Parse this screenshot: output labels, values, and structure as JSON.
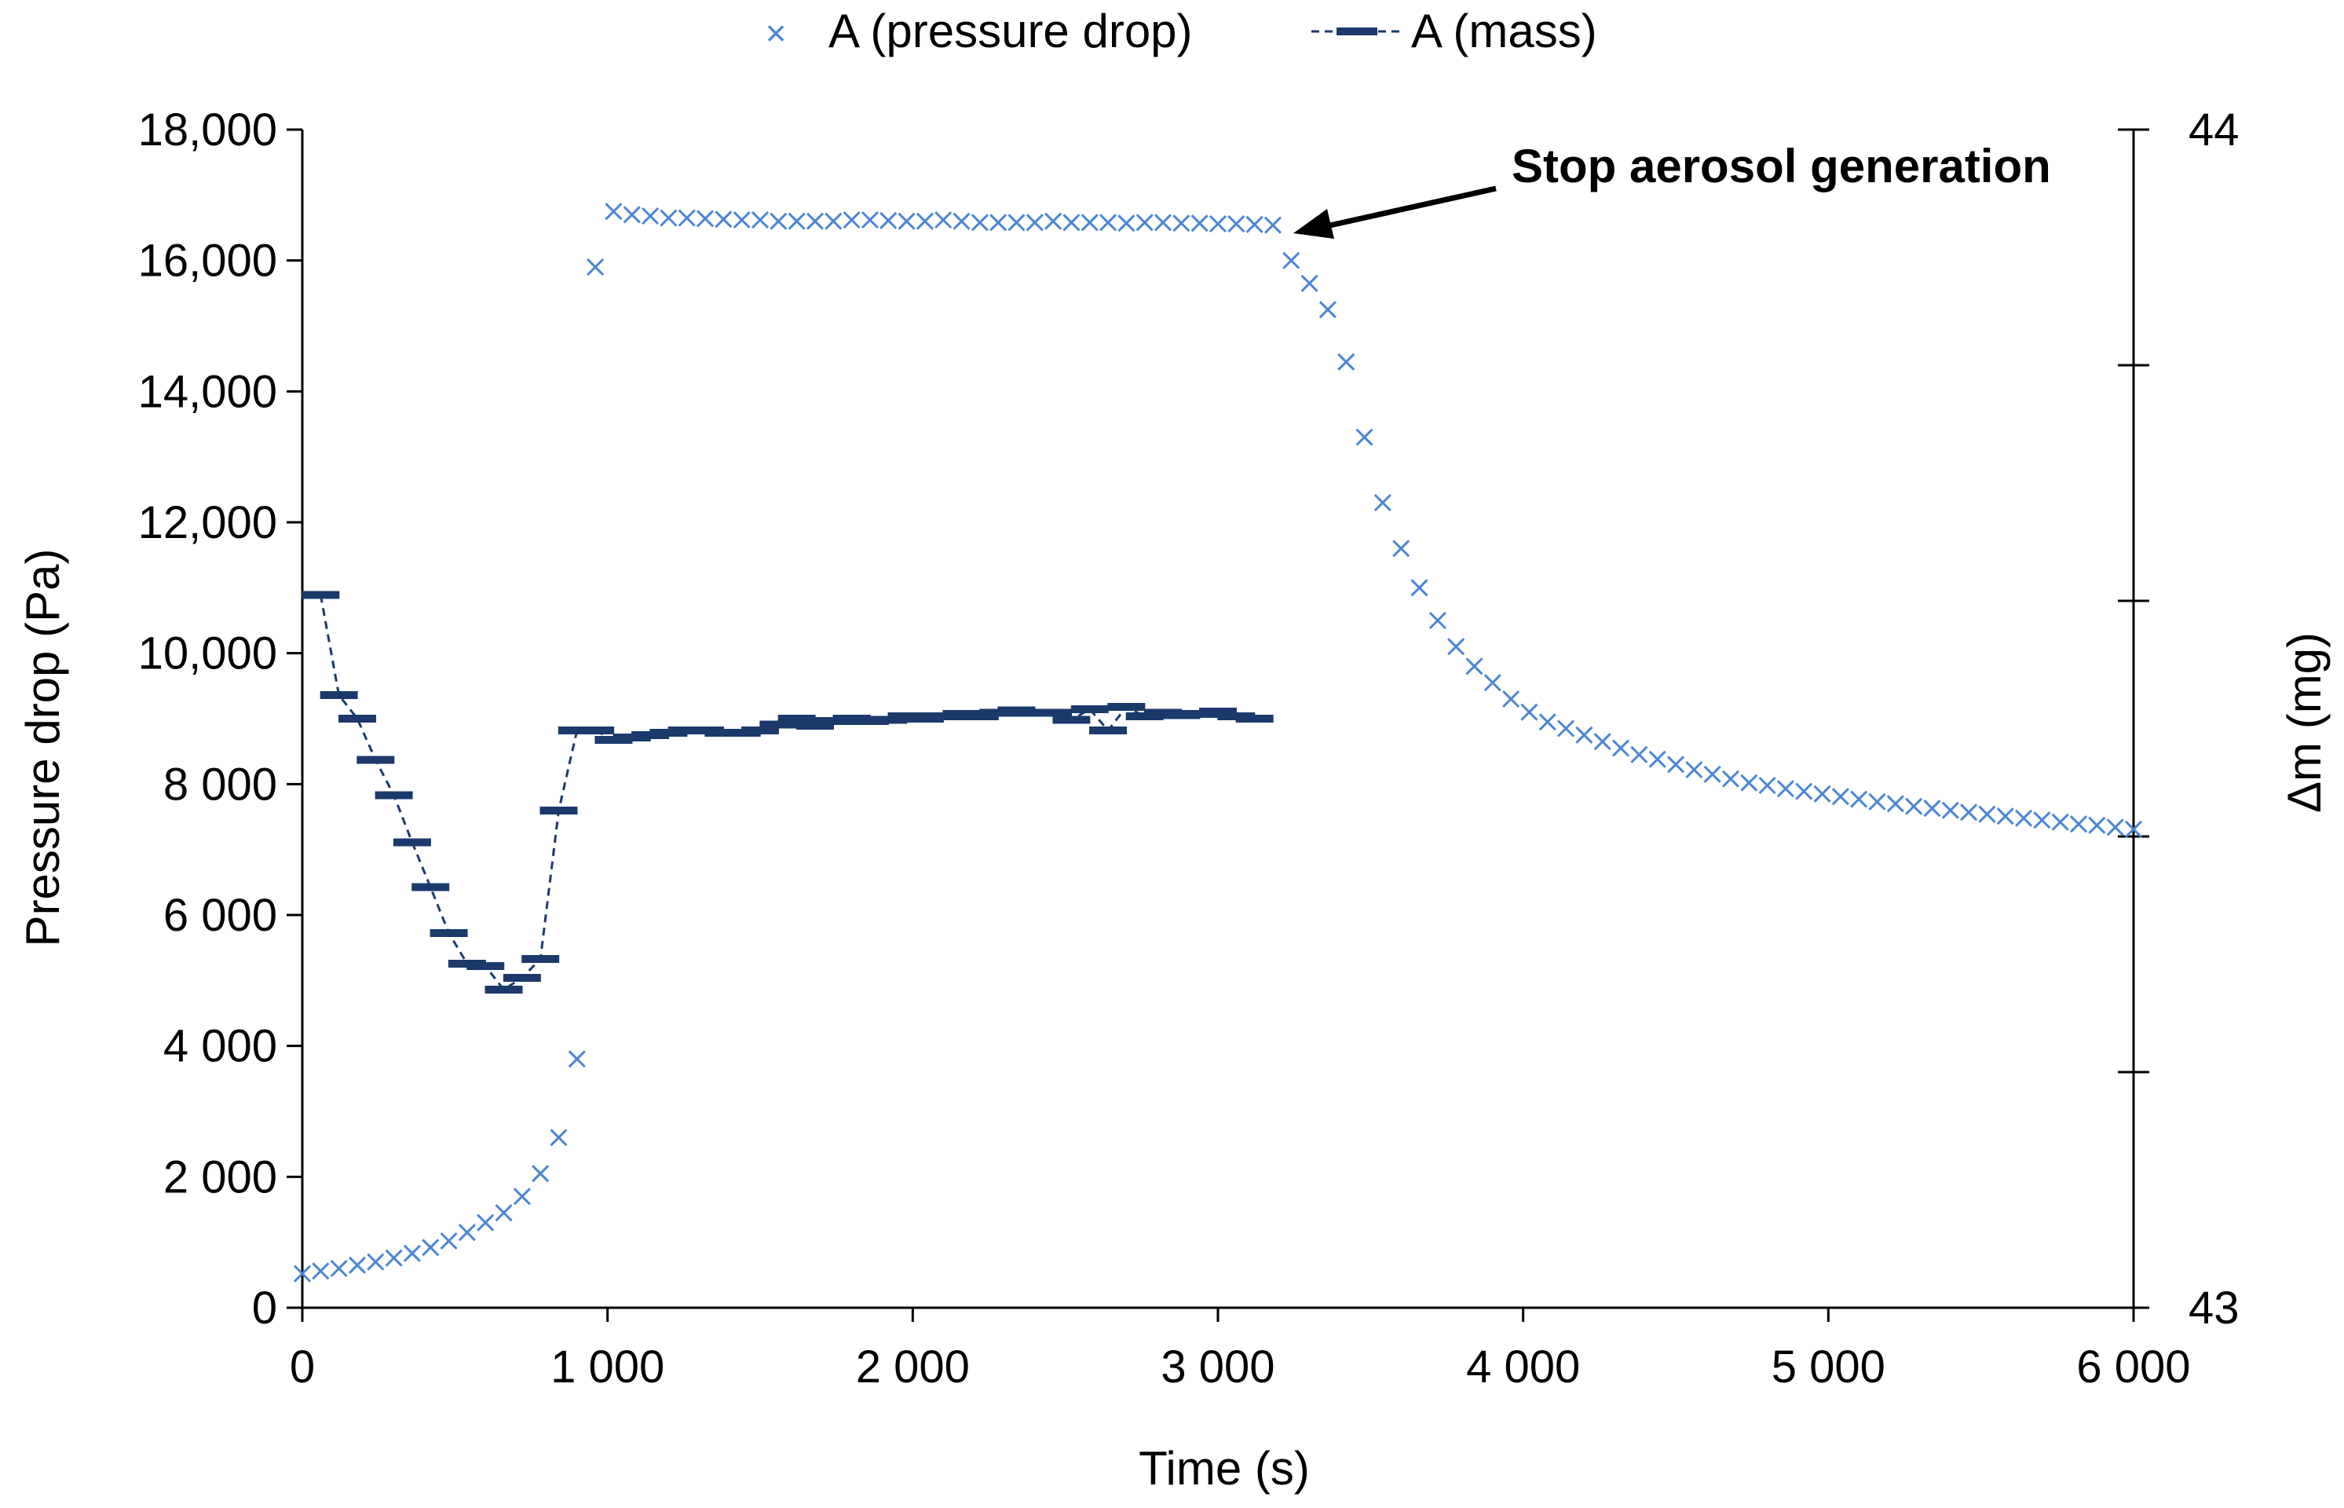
{
  "chart_data": {
    "type": "scatter",
    "xlabel": "Time (s)",
    "ylabel_left": "Pressure drop (Pa)",
    "ylabel_right": "Δm (mg)",
    "xlim": [
      0,
      6000
    ],
    "ylim_left": [
      0,
      18000
    ],
    "ylim_right": [
      43,
      44
    ],
    "x_ticks": [
      {
        "value": 0,
        "label": "0"
      },
      {
        "value": 1000,
        "label": "1 000"
      },
      {
        "value": 2000,
        "label": "2 000"
      },
      {
        "value": 3000,
        "label": "3 000"
      },
      {
        "value": 4000,
        "label": "4 000"
      },
      {
        "value": 5000,
        "label": "5 000"
      },
      {
        "value": 6000,
        "label": "6 000"
      }
    ],
    "y_left_ticks": [
      {
        "value": 0,
        "label": "0"
      },
      {
        "value": 2000,
        "label": "2 000"
      },
      {
        "value": 4000,
        "label": "4 000"
      },
      {
        "value": 6000,
        "label": "6 000"
      },
      {
        "value": 8000,
        "label": "8 000"
      },
      {
        "value": 10000,
        "label": "10,000"
      },
      {
        "value": 12000,
        "label": "12,000"
      },
      {
        "value": 14000,
        "label": "14,000"
      },
      {
        "value": 16000,
        "label": "16,000"
      },
      {
        "value": 18000,
        "label": "18,000"
      }
    ],
    "y_right_ticks": [
      {
        "value": 43,
        "label": "43"
      },
      {
        "value": 43.2,
        "label": ""
      },
      {
        "value": 43.4,
        "label": ""
      },
      {
        "value": 43.6,
        "label": ""
      },
      {
        "value": 43.8,
        "label": ""
      },
      {
        "value": 44,
        "label": "44"
      }
    ],
    "grid": false,
    "legend_position": "top-center",
    "series": [
      {
        "name": "A (pressure drop)",
        "axis": "left",
        "marker": "x",
        "color": "#4a86d4",
        "x": [
          0,
          60,
          120,
          180,
          240,
          300,
          360,
          420,
          480,
          540,
          600,
          660,
          720,
          780,
          840,
          900,
          960,
          1020,
          1080,
          1140,
          1200,
          1260,
          1320,
          1380,
          1440,
          1500,
          1560,
          1620,
          1680,
          1740,
          1800,
          1860,
          1920,
          1980,
          2040,
          2100,
          2160,
          2220,
          2280,
          2340,
          2400,
          2460,
          2520,
          2580,
          2640,
          2700,
          2760,
          2820,
          2880,
          2940,
          3000,
          3060,
          3120,
          3180,
          3240,
          3300,
          3360,
          3420,
          3480,
          3540,
          3600,
          3660,
          3720,
          3780,
          3840,
          3900,
          3960,
          4020,
          4080,
          4140,
          4200,
          4260,
          4320,
          4380,
          4440,
          4500,
          4560,
          4620,
          4680,
          4740,
          4800,
          4860,
          4920,
          4980,
          5040,
          5100,
          5160,
          5220,
          5280,
          5340,
          5400,
          5460,
          5520,
          5580,
          5640,
          5700,
          5760,
          5820,
          5880,
          5940,
          6000
        ],
        "y": [
          520,
          560,
          600,
          650,
          700,
          760,
          830,
          920,
          1020,
          1150,
          1300,
          1450,
          1700,
          2050,
          2600,
          3800,
          15900,
          16750,
          16700,
          16680,
          16650,
          16650,
          16640,
          16630,
          16620,
          16620,
          16600,
          16600,
          16600,
          16600,
          16620,
          16620,
          16610,
          16600,
          16600,
          16620,
          16600,
          16580,
          16580,
          16580,
          16580,
          16600,
          16580,
          16580,
          16580,
          16570,
          16580,
          16580,
          16570,
          16570,
          16560,
          16560,
          16550,
          16540,
          16000,
          15650,
          15250,
          14450,
          13300,
          12300,
          11600,
          11000,
          10500,
          10100,
          9800,
          9550,
          9300,
          9100,
          8950,
          8850,
          8750,
          8650,
          8550,
          8450,
          8380,
          8300,
          8220,
          8150,
          8080,
          8020,
          7980,
          7930,
          7890,
          7850,
          7810,
          7770,
          7730,
          7700,
          7660,
          7630,
          7600,
          7570,
          7540,
          7510,
          7480,
          7450,
          7420,
          7390,
          7370,
          7340,
          7310
        ]
      },
      {
        "name": "A (mass)",
        "axis": "right",
        "marker": "dash",
        "line": "dashed",
        "color": "#1b3a6b",
        "x": [
          60,
          120,
          180,
          240,
          300,
          360,
          420,
          480,
          540,
          600,
          660,
          720,
          780,
          840,
          900,
          960,
          1020,
          1080,
          1140,
          1200,
          1260,
          1320,
          1380,
          1440,
          1500,
          1560,
          1620,
          1680,
          1740,
          1800,
          1860,
          1920,
          1980,
          2040,
          2100,
          2160,
          2220,
          2280,
          2340,
          2400,
          2460,
          2520,
          2580,
          2640,
          2700,
          2760,
          2820,
          2880,
          2940,
          3000,
          3060,
          3120
        ],
        "y": [
          43.605,
          43.52,
          43.5,
          43.465,
          43.435,
          43.395,
          43.357,
          43.318,
          43.292,
          43.29,
          43.27,
          43.28,
          43.296,
          43.422,
          43.49,
          43.49,
          43.482,
          43.484,
          43.486,
          43.488,
          43.49,
          43.49,
          43.488,
          43.488,
          43.49,
          43.495,
          43.5,
          43.494,
          43.498,
          43.5,
          43.498,
          43.499,
          43.502,
          43.5,
          43.502,
          43.504,
          43.502,
          43.505,
          43.507,
          43.505,
          43.505,
          43.499,
          43.508,
          43.49,
          43.51,
          43.502,
          43.505,
          43.503,
          43.504,
          43.506,
          43.502,
          43.5
        ]
      }
    ],
    "annotations": [
      {
        "text": "Stop aerosol generation",
        "x": 3250,
        "y": 16550
      }
    ]
  }
}
